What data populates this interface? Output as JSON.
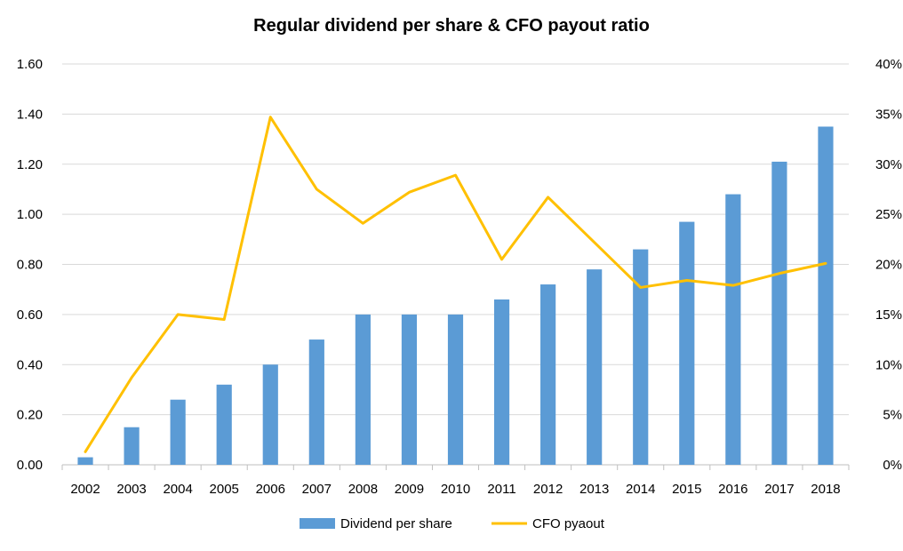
{
  "chart_data": {
    "type": "bar+line",
    "title": "Regular dividend per share & CFO payout ratio",
    "categories": [
      "2002",
      "2003",
      "2004",
      "2005",
      "2006",
      "2007",
      "2008",
      "2009",
      "2010",
      "2011",
      "2012",
      "2013",
      "2014",
      "2015",
      "2016",
      "2017",
      "2018"
    ],
    "series": [
      {
        "name": "Dividend per share",
        "type": "bar",
        "axis": "left",
        "color": "#5b9bd5",
        "values": [
          0.03,
          0.15,
          0.26,
          0.32,
          0.4,
          0.5,
          0.6,
          0.6,
          0.6,
          0.66,
          0.72,
          0.78,
          0.86,
          0.97,
          1.08,
          1.21,
          1.35
        ]
      },
      {
        "name": "CFO pyaout",
        "type": "line",
        "axis": "right",
        "color": "#ffc000",
        "values": [
          0.013,
          0.087,
          0.15,
          0.145,
          0.347,
          0.275,
          0.241,
          0.272,
          0.289,
          0.205,
          0.267,
          0.222,
          0.177,
          0.184,
          0.179,
          0.191,
          0.201
        ]
      }
    ],
    "y_left": {
      "ylim": [
        0,
        1.6
      ],
      "ticks": [
        "0.00",
        "0.20",
        "0.40",
        "0.60",
        "0.80",
        "1.00",
        "1.20",
        "1.40",
        "1.60"
      ]
    },
    "y_right": {
      "ylim": [
        0,
        0.4
      ],
      "ticks": [
        "0%",
        "5%",
        "10%",
        "15%",
        "20%",
        "25%",
        "30%",
        "35%",
        "40%"
      ]
    },
    "grid": true,
    "legend": "bottom-center"
  }
}
